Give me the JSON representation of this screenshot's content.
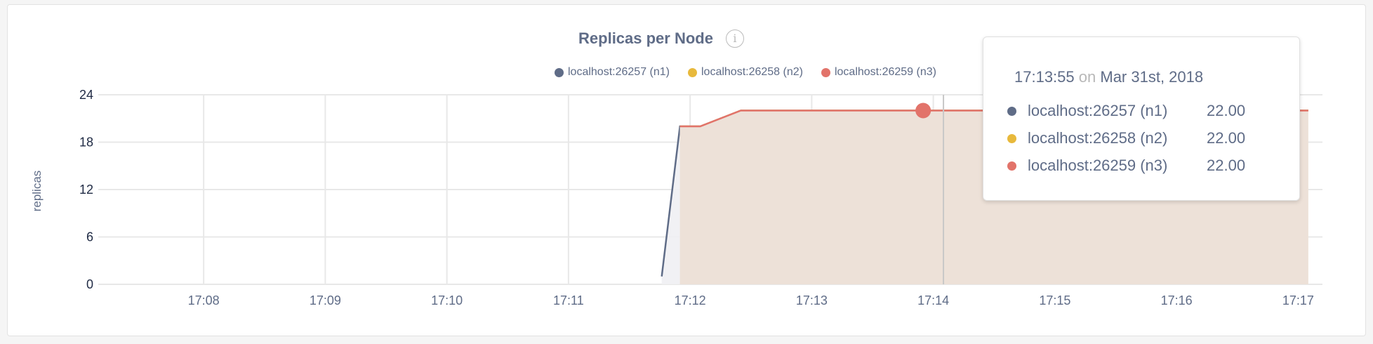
{
  "chart_data": {
    "type": "area",
    "title": "Replicas per Node",
    "ylabel": "replicas",
    "xlabel": "",
    "ylim": [
      0,
      24
    ],
    "yticks": [
      "0",
      "6",
      "12",
      "18",
      "24"
    ],
    "xlim": [
      "17:07:08",
      "17:17:12"
    ],
    "xticks": [
      "17:08",
      "17:09",
      "17:10",
      "17:11",
      "17:12",
      "17:13",
      "17:14",
      "17:15",
      "17:16",
      "17:17"
    ],
    "grid": true,
    "legend_position": "top-center",
    "series": [
      {
        "name": "localhost:26257 (n1)",
        "color": "#5f6c87",
        "fill": "#eff0f3",
        "points": [
          [
            "17:11:46",
            1
          ],
          [
            "17:11:55",
            20
          ],
          [
            "17:12:05",
            20
          ],
          [
            "17:12:25",
            22
          ],
          [
            "17:17:05",
            22
          ]
        ]
      },
      {
        "name": "localhost:26258 (n2)",
        "color": "#e8b93c",
        "fill": "#f6ecd4",
        "points": [
          [
            "17:11:55",
            20
          ],
          [
            "17:12:05",
            20
          ],
          [
            "17:12:25",
            22
          ],
          [
            "17:17:05",
            22
          ]
        ]
      },
      {
        "name": "localhost:26259 (n3)",
        "color": "#e2736a",
        "fill": "#ecdfd8",
        "points": [
          [
            "17:11:55",
            20
          ],
          [
            "17:12:05",
            20
          ],
          [
            "17:12:25",
            22
          ],
          [
            "17:17:05",
            22
          ]
        ]
      }
    ],
    "hover": {
      "time": "17:13:55",
      "value": 22,
      "cursor_time": "17:14:05"
    }
  },
  "info_icon": "info-icon",
  "tooltip": {
    "time": "17:13:55",
    "on": "on",
    "date": "Mar 31st, 2018",
    "rows": [
      {
        "label": "localhost:26257 (n1)",
        "value": "22.00",
        "color": "#5f6c87"
      },
      {
        "label": "localhost:26258 (n2)",
        "value": "22.00",
        "color": "#e8b93c"
      },
      {
        "label": "localhost:26259 (n3)",
        "value": "22.00",
        "color": "#e2736a"
      }
    ]
  }
}
